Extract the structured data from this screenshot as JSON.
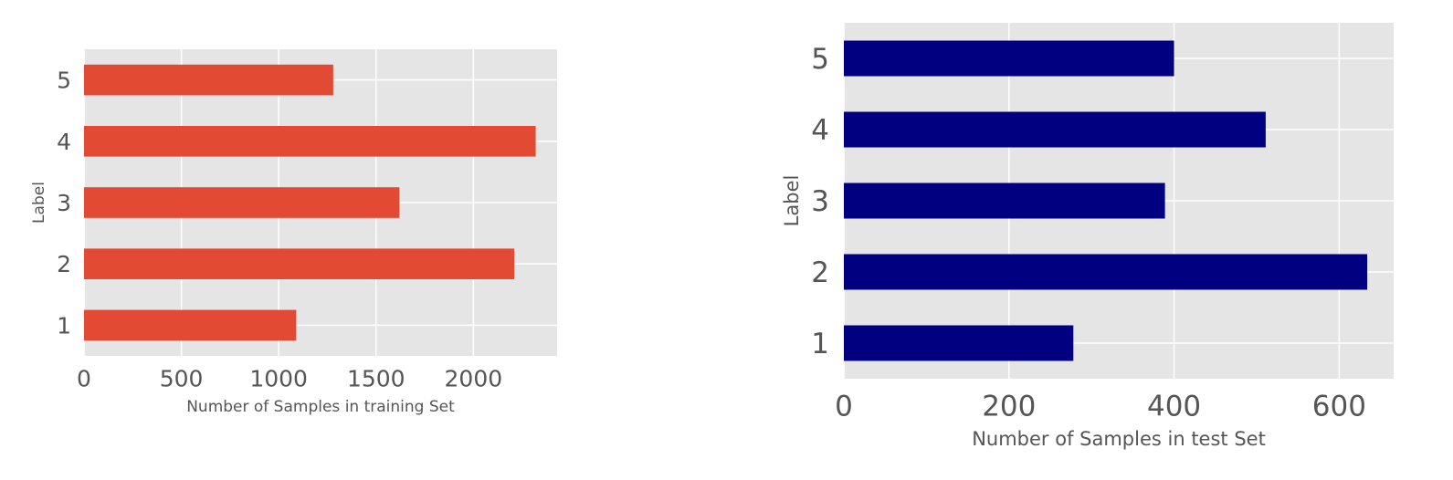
{
  "chart_data": [
    {
      "type": "bar",
      "orientation": "horizontal",
      "categories": [
        "1",
        "2",
        "3",
        "4",
        "5"
      ],
      "values": [
        1090,
        2210,
        1620,
        2320,
        1280
      ],
      "xlabel": "Number of Samples in training Set",
      "ylabel": "Label",
      "xlim": [
        0,
        2430
      ],
      "xticks": [
        "0",
        "500",
        "1000",
        "1500",
        "2000"
      ],
      "grid": true,
      "bar_color": "#E24A33",
      "background_color": "#E5E5E5"
    },
    {
      "type": "bar",
      "orientation": "horizontal",
      "categories": [
        "1",
        "2",
        "3",
        "4",
        "5"
      ],
      "values": [
        278,
        634,
        389,
        511,
        400
      ],
      "xlabel": "Number of Samples in test Set",
      "ylabel": "Label",
      "xlim": [
        0,
        666
      ],
      "xticks": [
        "0",
        "200",
        "400",
        "600"
      ],
      "grid": true,
      "bar_color": "#000080",
      "background_color": "#E5E5E5"
    }
  ]
}
